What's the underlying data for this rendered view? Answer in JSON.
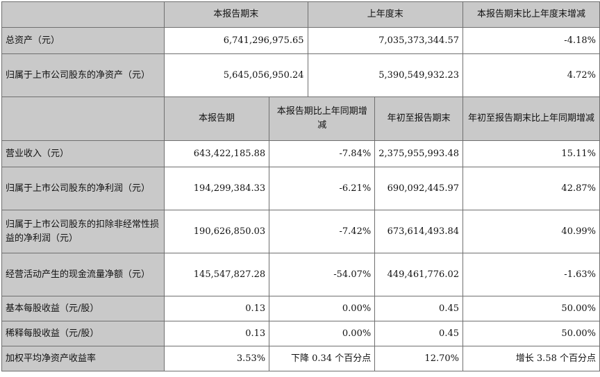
{
  "top_header": {
    "c1": "本报告期末",
    "c2": "上年度末",
    "c3": "本报告期末比上年度末增减"
  },
  "balance_rows": [
    {
      "label": "总资产（元）",
      "current": "6,741,296,975.65",
      "prior": "7,035,373,344.57",
      "change": "-4.18%"
    },
    {
      "label": "归属于上市公司股东的净资产（元）",
      "current": "5,645,056,950.24",
      "prior": "5,390,549,932.23",
      "change": "4.72%"
    }
  ],
  "period_header": {
    "c1": "本报告期",
    "c2": "本报告期比上年同期增减",
    "c3": "年初至报告期末",
    "c4": "年初至报告期末比上年同期增减"
  },
  "period_rows": [
    {
      "label": "营业收入（元）",
      "period": "643,422,185.88",
      "period_change": "-7.84%",
      "ytd": "2,375,955,993.48",
      "ytd_change": "15.11%"
    },
    {
      "label": "归属于上市公司股东的净利润（元）",
      "period": "194,299,384.33",
      "period_change": "-6.21%",
      "ytd": "690,092,445.97",
      "ytd_change": "42.87%"
    },
    {
      "label": "归属于上市公司股东的扣除非经常性损益的净利润（元）",
      "period": "190,626,850.03",
      "period_change": "-7.42%",
      "ytd": "673,614,493.84",
      "ytd_change": "40.99%"
    },
    {
      "label": "经营活动产生的现金流量净额（元）",
      "period": "145,547,827.28",
      "period_change": "-54.07%",
      "ytd": "449,461,776.02",
      "ytd_change": "-1.63%"
    },
    {
      "label": "基本每股收益（元/股）",
      "period": "0.13",
      "period_change": "0.00%",
      "ytd": "0.45",
      "ytd_change": "50.00%"
    },
    {
      "label": "稀释每股收益（元/股）",
      "period": "0.13",
      "period_change": "0.00%",
      "ytd": "0.45",
      "ytd_change": "50.00%"
    },
    {
      "label": "加权平均净资产收益率",
      "period": "3.53%",
      "period_change": "下降 0.34 个百分点",
      "ytd": "12.70%",
      "ytd_change": "增长 3.58 个百分点"
    }
  ]
}
